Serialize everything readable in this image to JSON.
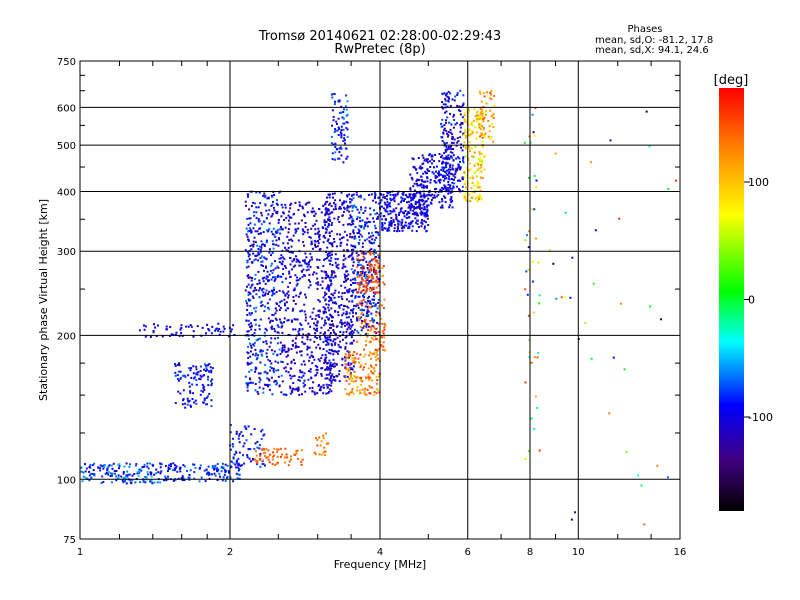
{
  "chart_data": {
    "type": "scatter",
    "title": "Tromsø 20140621 02:28:00-02:29:43",
    "subtitle": "RwPretec (8p)",
    "xlabel": "Frequency [MHz]",
    "ylabel": "Stationary phase Virtual Height [km]",
    "x_scale": "log",
    "y_scale": "log",
    "xlim": [
      1,
      16
    ],
    "ylim": [
      75,
      750
    ],
    "x_ticks": [
      1,
      2,
      4,
      6,
      8,
      10,
      16
    ],
    "y_ticks": [
      75,
      100,
      200,
      300,
      400,
      500,
      600,
      750
    ],
    "grid": true,
    "stats": {
      "heading": "Phases",
      "line_o": "mean, sd,O: -81.2, 17.8",
      "line_x": "mean, sd,X:  94.1, 24.6"
    },
    "colorbar": {
      "label": "[deg]",
      "range": [
        -180,
        180
      ],
      "ticks": [
        100,
        0,
        -100
      ],
      "colors": [
        "#ff0000",
        "#ff8000",
        "#ffff00",
        "#00ff00",
        "#00ffff",
        "#0000ff",
        "#400080",
        "#000000"
      ]
    },
    "clusters": [
      {
        "x": [
          1.0,
          1.45
        ],
        "y": [
          98,
          108
        ],
        "phase": [
          -115,
          -45
        ],
        "n": 150
      },
      {
        "x": [
          1.45,
          2.1
        ],
        "y": [
          99,
          108
        ],
        "phase": [
          -110,
          -60
        ],
        "n": 130
      },
      {
        "x": [
          1.3,
          2.05
        ],
        "y": [
          198,
          212
        ],
        "phase": [
          -110,
          -85
        ],
        "n": 60
      },
      {
        "x": [
          1.55,
          1.85
        ],
        "y": [
          140,
          175
        ],
        "phase": [
          -110,
          -70
        ],
        "n": 110
      },
      {
        "x": [
          2.0,
          2.35
        ],
        "y": [
          105,
          130
        ],
        "phase": [
          -110,
          -70
        ],
        "n": 70
      },
      {
        "x": [
          2.15,
          2.55
        ],
        "y": [
          150,
          400
        ],
        "phase": [
          -130,
          -60
        ],
        "n": 500
      },
      {
        "x": [
          2.55,
          3.2
        ],
        "y": [
          150,
          380
        ],
        "phase": [
          -130,
          -80
        ],
        "n": 550
      },
      {
        "x": [
          3.1,
          3.55
        ],
        "y": [
          160,
          400
        ],
        "phase": [
          -130,
          -80
        ],
        "n": 420
      },
      {
        "x": [
          3.5,
          4.0
        ],
        "y": [
          200,
          400
        ],
        "phase": [
          -130,
          -60
        ],
        "n": 320
      },
      {
        "x": [
          3.2,
          3.45
        ],
        "y": [
          460,
          640
        ],
        "phase": [
          -110,
          -60
        ],
        "n": 80
      },
      {
        "x": [
          2.2,
          2.8
        ],
        "y": [
          107,
          116
        ],
        "phase": [
          120,
          160
        ],
        "n": 60
      },
      {
        "x": [
          2.95,
          3.15
        ],
        "y": [
          112,
          125
        ],
        "phase": [
          110,
          150
        ],
        "n": 20
      },
      {
        "x": [
          3.4,
          4.0
        ],
        "y": [
          150,
          185
        ],
        "phase": [
          100,
          160
        ],
        "n": 130
      },
      {
        "x": [
          3.6,
          4.1
        ],
        "y": [
          185,
          280
        ],
        "phase": [
          100,
          170
        ],
        "n": 120
      },
      {
        "x": [
          3.6,
          4.0
        ],
        "y": [
          245,
          300
        ],
        "phase": [
          140,
          175
        ],
        "n": 60
      },
      {
        "x": [
          4.0,
          5.0
        ],
        "y": [
          330,
          400
        ],
        "phase": [
          -120,
          -80
        ],
        "n": 260
      },
      {
        "x": [
          4.6,
          5.6
        ],
        "y": [
          370,
          480
        ],
        "phase": [
          -120,
          -80
        ],
        "n": 230
      },
      {
        "x": [
          5.3,
          5.9
        ],
        "y": [
          400,
          650
        ],
        "phase": [
          -130,
          -70
        ],
        "n": 200
      },
      {
        "x": [
          5.9,
          6.5
        ],
        "y": [
          380,
          600
        ],
        "phase": [
          50,
          130
        ],
        "n": 170
      },
      {
        "x": [
          6.3,
          6.8
        ],
        "y": [
          500,
          650
        ],
        "phase": [
          80,
          150
        ],
        "n": 60
      },
      {
        "x": [
          7.8,
          8.4
        ],
        "y": [
          110,
          640
        ],
        "phase": [
          -130,
          160
        ],
        "n": 45
      },
      {
        "x": [
          8.6,
          15.8
        ],
        "y": [
          76,
          600
        ],
        "phase": [
          -160,
          170
        ],
        "n": 35
      }
    ]
  }
}
